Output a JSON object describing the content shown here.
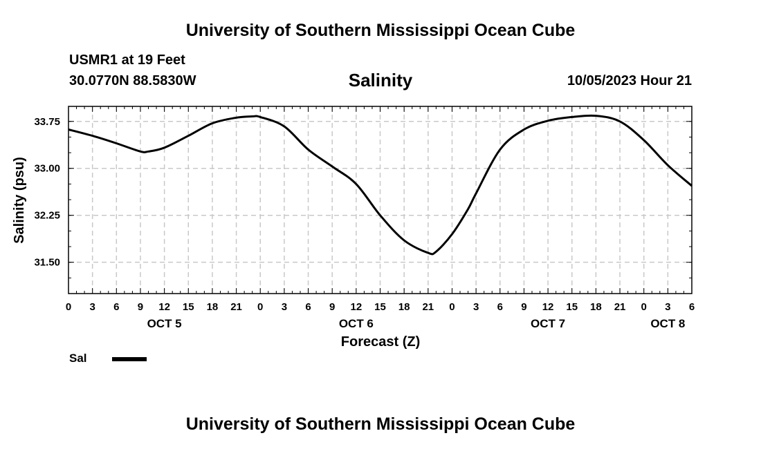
{
  "header": {
    "title_top": "University of Southern Mississippi Ocean Cube",
    "title_bottom": "University of Southern Mississippi Ocean Cube",
    "station": "USMR1 at 19 Feet",
    "coords": "30.0770N  88.5830W",
    "timestamp": "10/05/2023 Hour 21"
  },
  "chart_data": {
    "type": "line",
    "title": "Salinity",
    "xlabel": "Forecast (Z)",
    "ylabel": "Salinity (psu)",
    "ylim": [
      31.0,
      33.99
    ],
    "xlim": [
      0,
      78
    ],
    "x_tick_labels": [
      "0",
      "3",
      "6",
      "9",
      "12",
      "15",
      "18",
      "21",
      "0",
      "3",
      "6",
      "9",
      "12",
      "15",
      "18",
      "21",
      "0",
      "3",
      "6",
      "9",
      "12",
      "15",
      "18",
      "21",
      "0",
      "3",
      "6"
    ],
    "y_ticks": [
      "31.50",
      "32.25",
      "33.00",
      "33.75"
    ],
    "day_labels": [
      {
        "label": "OCT 5",
        "x": 12
      },
      {
        "label": "OCT 6",
        "x": 36
      },
      {
        "label": "OCT 7",
        "x": 60
      },
      {
        "label": "OCT 8",
        "x": 75
      }
    ],
    "grid": true,
    "legend_position": "bottom-left",
    "series": [
      {
        "name": "Sal",
        "color": "#000000",
        "x": [
          0,
          3,
          6,
          9,
          10,
          12,
          15,
          18,
          21,
          23,
          24,
          27,
          30,
          33,
          36,
          39,
          42,
          45,
          46,
          48,
          50,
          51,
          54,
          57,
          60,
          63,
          66,
          69,
          72,
          75,
          78
        ],
        "y": [
          33.62,
          33.52,
          33.4,
          33.27,
          33.27,
          33.33,
          33.52,
          33.72,
          33.81,
          33.83,
          33.82,
          33.67,
          33.3,
          33.03,
          32.75,
          32.25,
          31.85,
          31.65,
          31.67,
          31.95,
          32.35,
          32.6,
          33.3,
          33.62,
          33.76,
          33.82,
          33.84,
          33.75,
          33.45,
          33.05,
          32.72
        ]
      }
    ]
  }
}
